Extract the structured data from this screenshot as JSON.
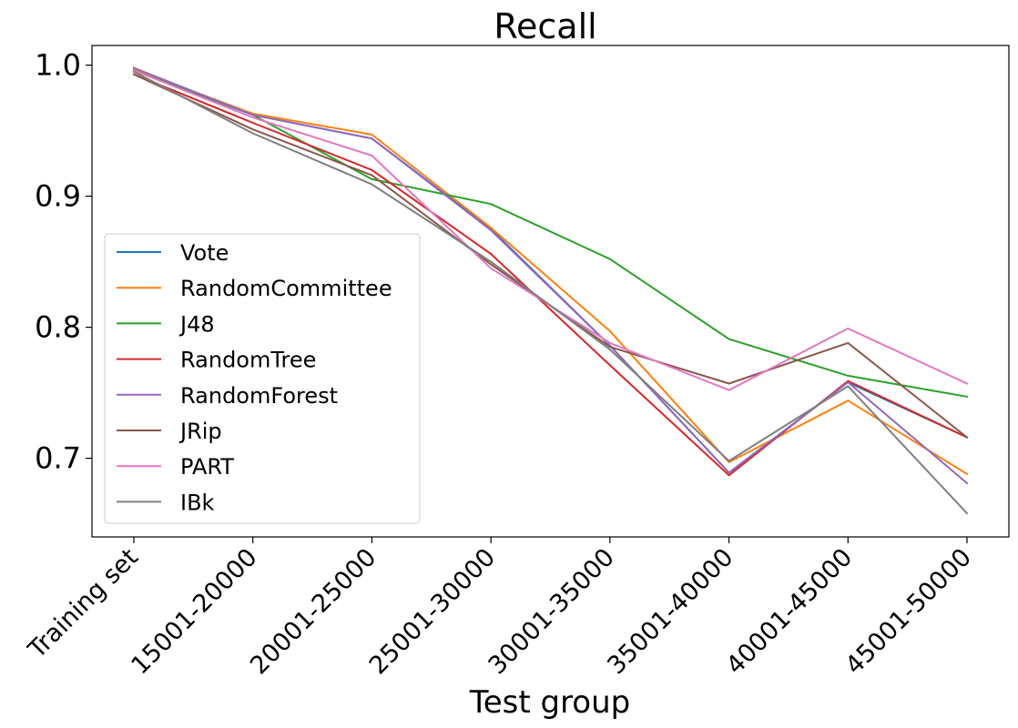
{
  "chart_data": {
    "type": "line",
    "title": "Recall",
    "xlabel": "Test group",
    "ylabel": "",
    "categories": [
      "Training set",
      "15001-20000",
      "20001-25000",
      "25001-30000",
      "30001-35000",
      "35001-40000",
      "40001-45000",
      "45001-50000"
    ],
    "ylim": [
      0.64,
      1.015
    ],
    "yticks": [
      0.7,
      0.8,
      0.9,
      1.0
    ],
    "ytick_labels": [
      "0.7",
      "0.8",
      "0.9",
      "1.0"
    ],
    "grid": false,
    "legend_position": "center-left",
    "series": [
      {
        "name": "Vote",
        "color": "#1f77b4",
        "values": [
          0.996,
          0.962,
          0.944,
          0.875,
          0.786,
          0.689,
          0.758,
          0.716
        ]
      },
      {
        "name": "RandomCommittee",
        "color": "#ff7f0e",
        "values": [
          0.997,
          0.963,
          0.947,
          0.876,
          0.797,
          0.697,
          0.744,
          0.688
        ]
      },
      {
        "name": "J48",
        "color": "#2ca02c",
        "values": [
          0.996,
          0.962,
          0.913,
          0.894,
          0.852,
          0.791,
          0.763,
          0.747
        ]
      },
      {
        "name": "RandomTree",
        "color": "#d62728",
        "values": [
          0.993,
          0.956,
          0.92,
          0.856,
          0.771,
          0.687,
          0.759,
          0.716
        ]
      },
      {
        "name": "RandomForest",
        "color": "#9467bd",
        "values": [
          0.998,
          0.962,
          0.944,
          0.874,
          0.786,
          0.689,
          0.758,
          0.681
        ]
      },
      {
        "name": "JRip",
        "color": "#8c564b",
        "values": [
          0.993,
          0.951,
          0.916,
          0.848,
          0.785,
          0.757,
          0.788,
          0.716
        ]
      },
      {
        "name": "PART",
        "color": "#e377c2",
        "values": [
          0.996,
          0.96,
          0.931,
          0.845,
          0.788,
          0.752,
          0.799,
          0.757
        ]
      },
      {
        "name": "IBk",
        "color": "#7f7f7f",
        "values": [
          0.995,
          0.948,
          0.909,
          0.85,
          0.783,
          0.698,
          0.755,
          0.658
        ]
      }
    ]
  }
}
